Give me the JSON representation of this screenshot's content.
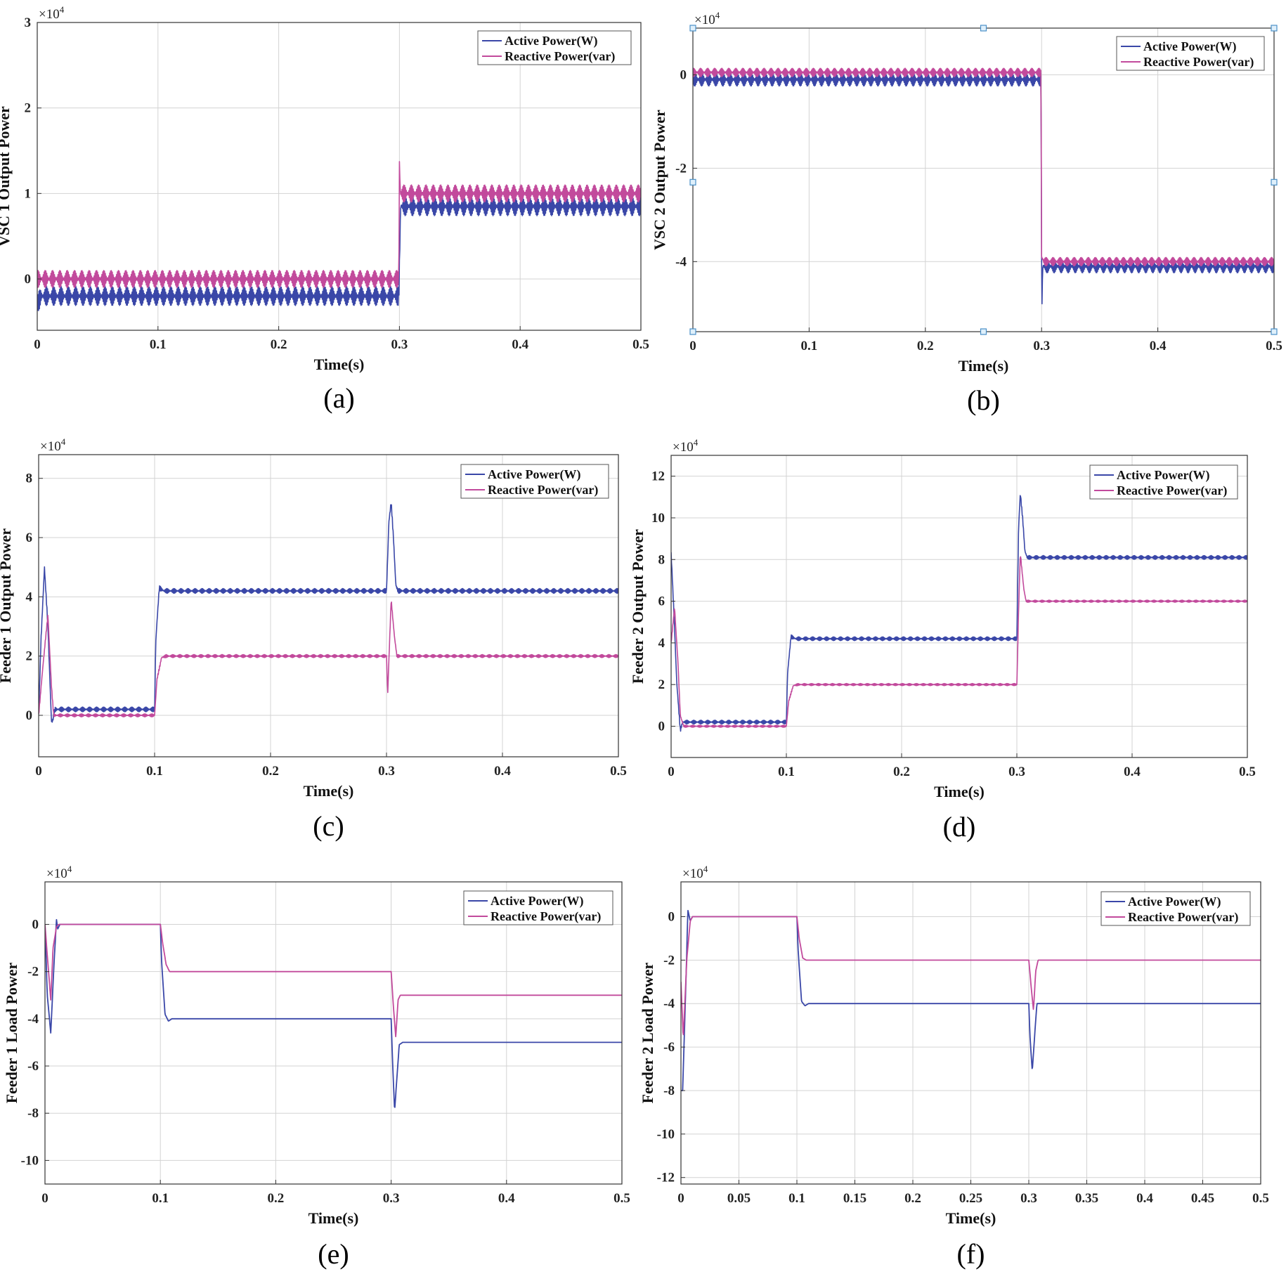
{
  "colors": {
    "active": "#3a47a8",
    "reactive": "#c24a9c",
    "grid": "#d3d3d3",
    "axis": "#333333"
  },
  "chart_data": [
    {
      "type": "line",
      "caption": "(a)",
      "xlabel": "Time(s)",
      "ylabel": "VSC 1 Output Power",
      "exponent": "4",
      "xlim": [
        0,
        0.5
      ],
      "ylim": [
        -0.6,
        3
      ],
      "xticks": [
        0,
        0.1,
        0.2,
        0.3,
        0.4,
        0.5
      ],
      "xtick_labels": [
        "0",
        "0.1",
        "0.2",
        "0.3",
        "0.4",
        "0.5"
      ],
      "yticks": [
        0,
        1,
        2,
        3
      ],
      "ytick_labels": [
        "0",
        "1",
        "2",
        "3"
      ],
      "grid": true,
      "legend": "top-right",
      "series": [
        {
          "name": "Active Power(W)",
          "color_key": "active",
          "band": 0.22,
          "x": [
            0,
            0.003,
            0.2995,
            0.3005,
            0.301,
            0.5
          ],
          "y": [
            -0.3,
            -0.2,
            -0.2,
            0.5,
            0.85,
            0.85
          ]
        },
        {
          "name": "Reactive Power(var)",
          "color_key": "reactive",
          "band": 0.2,
          "x": [
            0,
            0.003,
            0.2995,
            0.3,
            0.3008,
            0.5
          ],
          "y": [
            0,
            0,
            0,
            1.35,
            1.0,
            1.0
          ]
        }
      ],
      "markers": []
    },
    {
      "type": "line",
      "caption": "(b)",
      "xlabel": "Time(s)",
      "ylabel": "VSC 2 Output Power",
      "exponent": "4",
      "xlim": [
        0,
        0.5
      ],
      "ylim": [
        -5.5,
        1.0
      ],
      "xticks": [
        0,
        0.1,
        0.2,
        0.3,
        0.4,
        0.5
      ],
      "xtick_labels": [
        "0",
        "0.1",
        "0.2",
        "0.3",
        "0.4",
        "0.5"
      ],
      "yticks": [
        0,
        -2,
        -4
      ],
      "ytick_labels": [
        "0",
        "-2",
        "-4"
      ],
      "grid": true,
      "legend": "top-right",
      "series": [
        {
          "name": "Active Power(W)",
          "color_key": "active",
          "band": 0.28,
          "x": [
            0,
            0.2995,
            0.3,
            0.3003,
            0.301,
            0.5
          ],
          "y": [
            -0.1,
            -0.1,
            -4.0,
            -4.9,
            -4.1,
            -4.1
          ]
        },
        {
          "name": "Reactive Power(var)",
          "color_key": "reactive",
          "band": 0.18,
          "x": [
            0,
            0.2995,
            0.3,
            0.302,
            0.5
          ],
          "y": [
            0.05,
            0.05,
            -3.9,
            -4.0,
            -4.0
          ]
        }
      ],
      "markers": [
        [
          0,
          1.0
        ],
        [
          0.25,
          1.0
        ],
        [
          0.5,
          1.0
        ],
        [
          0,
          -2.3
        ],
        [
          0.5,
          -2.3
        ],
        [
          0,
          -5.5
        ],
        [
          0.25,
          -5.5
        ],
        [
          0.5,
          -5.5
        ]
      ]
    },
    {
      "type": "line",
      "caption": "(c)",
      "xlabel": "Time(s)",
      "ylabel": "Feeder 1 Output Power",
      "exponent": "4",
      "xlim": [
        0,
        0.5
      ],
      "ylim": [
        -1.4,
        8.8
      ],
      "xticks": [
        0,
        0.1,
        0.2,
        0.3,
        0.4,
        0.5
      ],
      "xtick_labels": [
        "0",
        "0.1",
        "0.2",
        "0.3",
        "0.4",
        "0.5"
      ],
      "yticks": [
        0,
        2,
        4,
        6,
        8
      ],
      "ytick_labels": [
        "0",
        "2",
        "4",
        "6",
        "8"
      ],
      "grid": true,
      "legend": "top-right",
      "series": [
        {
          "name": "Active Power(W)",
          "color_key": "active",
          "band": 0.16,
          "x": [
            0,
            0.002,
            0.005,
            0.008,
            0.011,
            0.012,
            0.014,
            0.1,
            0.101,
            0.104,
            0.108,
            0.3,
            0.302,
            0.304,
            0.306,
            0.308,
            0.31,
            0.5
          ],
          "y": [
            0,
            2.5,
            5.0,
            3.0,
            -0.2,
            -0.2,
            0.2,
            0.2,
            2.5,
            4.3,
            4.2,
            4.2,
            6.5,
            7.2,
            6.0,
            4.4,
            4.2,
            4.2
          ]
        },
        {
          "name": "Reactive Power(var)",
          "color_key": "reactive",
          "band": 0.1,
          "x": [
            0,
            0.004,
            0.008,
            0.011,
            0.013,
            0.1,
            0.102,
            0.106,
            0.11,
            0.3,
            0.301,
            0.304,
            0.307,
            0.309,
            0.5
          ],
          "y": [
            0,
            1.8,
            3.4,
            1.0,
            0,
            0,
            1.2,
            1.95,
            2.0,
            2.0,
            0.7,
            3.9,
            2.6,
            2.0,
            2.0
          ]
        }
      ],
      "markers": []
    },
    {
      "type": "line",
      "caption": "(d)",
      "xlabel": "Time(s)",
      "ylabel": "Feeder 2 Output Power",
      "exponent": "4",
      "xlim": [
        0,
        0.5
      ],
      "ylim": [
        -1.5,
        13
      ],
      "xticks": [
        0,
        0.1,
        0.2,
        0.3,
        0.4,
        0.5
      ],
      "xtick_labels": [
        "0",
        "0.1",
        "0.2",
        "0.3",
        "0.4",
        "0.5"
      ],
      "yticks": [
        0,
        2,
        4,
        6,
        8,
        10,
        12
      ],
      "ytick_labels": [
        "0",
        "2",
        "4",
        "6",
        "8",
        "10",
        "12"
      ],
      "grid": true,
      "legend": "top-right",
      "series": [
        {
          "name": "Active Power(W)",
          "color_key": "active",
          "band": 0.18,
          "x": [
            0,
            0.002,
            0.005,
            0.008,
            0.01,
            0.015,
            0.1,
            0.101,
            0.104,
            0.108,
            0.3,
            0.3015,
            0.303,
            0.305,
            0.307,
            0.309,
            0.5
          ],
          "y": [
            8.3,
            6.0,
            2.0,
            -0.2,
            0.2,
            0.2,
            0.2,
            2.5,
            4.3,
            4.2,
            4.2,
            9.5,
            11.2,
            10.0,
            8.4,
            8.1,
            8.1
          ]
        },
        {
          "name": "Reactive Power(var)",
          "color_key": "reactive",
          "band": 0.1,
          "x": [
            0,
            0.003,
            0.006,
            0.008,
            0.011,
            0.1,
            0.102,
            0.106,
            0.11,
            0.3,
            0.3015,
            0.303,
            0.306,
            0.308,
            0.5
          ],
          "y": [
            4.0,
            5.7,
            3.0,
            0.5,
            0,
            0,
            1.2,
            1.95,
            2.0,
            2.0,
            5.5,
            8.3,
            6.6,
            6.0,
            6.0
          ]
        }
      ],
      "markers": []
    },
    {
      "type": "line",
      "caption": "(e)",
      "xlabel": "Time(s)",
      "ylabel": "Feeder 1 Load Power",
      "exponent": "4",
      "xlim": [
        0,
        0.5
      ],
      "ylim": [
        -11,
        1.8
      ],
      "xticks": [
        0,
        0.1,
        0.2,
        0.3,
        0.4,
        0.5
      ],
      "xtick_labels": [
        "0",
        "0.1",
        "0.2",
        "0.3",
        "0.4",
        "0.5"
      ],
      "yticks": [
        0,
        -2,
        -4,
        -6,
        -8,
        -10
      ],
      "ytick_labels": [
        "0",
        "-2",
        "-4",
        "-6",
        "-8",
        "-10"
      ],
      "grid": true,
      "legend": "top-right",
      "series": [
        {
          "name": "Active Power(W)",
          "color_key": "active",
          "band": 0,
          "x": [
            0,
            0.002,
            0.005,
            0.008,
            0.01,
            0.011,
            0.013,
            0.1,
            0.101,
            0.104,
            0.107,
            0.11,
            0.3,
            0.301,
            0.303,
            0.305,
            0.307,
            0.31,
            0.5
          ],
          "y": [
            0,
            -3.0,
            -4.6,
            -1.5,
            0.2,
            -0.2,
            0,
            0,
            -1.5,
            -3.8,
            -4.1,
            -4.0,
            -4.0,
            -5.5,
            -7.9,
            -6.5,
            -5.1,
            -5.0,
            -5.0
          ]
        },
        {
          "name": "Reactive Power(var)",
          "color_key": "reactive",
          "band": 0,
          "x": [
            0,
            0.002,
            0.005,
            0.007,
            0.01,
            0.012,
            0.1,
            0.102,
            0.105,
            0.108,
            0.11,
            0.3,
            0.302,
            0.304,
            0.306,
            0.308,
            0.5
          ],
          "y": [
            0,
            -1.3,
            -3.2,
            -1.0,
            -0.1,
            0,
            0,
            -0.8,
            -1.7,
            -2.0,
            -2.0,
            -2.0,
            -3.5,
            -4.8,
            -3.2,
            -3.0,
            -3.0
          ]
        }
      ],
      "markers": []
    },
    {
      "type": "line",
      "caption": "(f)",
      "xlabel": "Time(s)",
      "ylabel": "Feeder 2 Load Power",
      "exponent": "4",
      "xlim": [
        0,
        0.5
      ],
      "ylim": [
        -12.3,
        1.6
      ],
      "xticks": [
        0,
        0.05,
        0.1,
        0.15,
        0.2,
        0.25,
        0.3,
        0.35,
        0.4,
        0.45,
        0.5
      ],
      "xtick_labels": [
        "0",
        "0.05",
        "0.1",
        "0.15",
        "0.2",
        "0.25",
        "0.3",
        "0.35",
        "0.4",
        "0.45",
        "0.5"
      ],
      "yticks": [
        0,
        -2,
        -4,
        -6,
        -8,
        -10,
        -12
      ],
      "ytick_labels": [
        "0",
        "-2",
        "-4",
        "-6",
        "-8",
        "-10",
        "-12"
      ],
      "grid": true,
      "legend": "top-right",
      "series": [
        {
          "name": "Active Power(W)",
          "color_key": "active",
          "band": 0,
          "x": [
            0,
            0.0015,
            0.004,
            0.006,
            0.008,
            0.01,
            0.1,
            0.101,
            0.104,
            0.107,
            0.11,
            0.3,
            0.301,
            0.303,
            0.305,
            0.307,
            0.31,
            0.5
          ],
          "y": [
            -8.0,
            -8.0,
            -3.5,
            0.3,
            -0.2,
            0,
            0,
            -1.5,
            -3.9,
            -4.1,
            -4.0,
            -4.0,
            -5.5,
            -7.1,
            -5.5,
            -4.0,
            -4.0,
            -4.0
          ]
        },
        {
          "name": "Reactive Power(var)",
          "color_key": "reactive",
          "band": 0,
          "x": [
            0,
            0.002,
            0.005,
            0.008,
            0.01,
            0.1,
            0.102,
            0.105,
            0.108,
            0.11,
            0.3,
            0.302,
            0.304,
            0.306,
            0.308,
            0.5
          ],
          "y": [
            -3.0,
            -5.6,
            -2.0,
            -0.2,
            0,
            0,
            -1.0,
            -1.9,
            -2.0,
            -2.0,
            -2.0,
            -3.2,
            -4.3,
            -2.5,
            -2.0,
            -2.0
          ]
        }
      ],
      "markers": []
    }
  ]
}
